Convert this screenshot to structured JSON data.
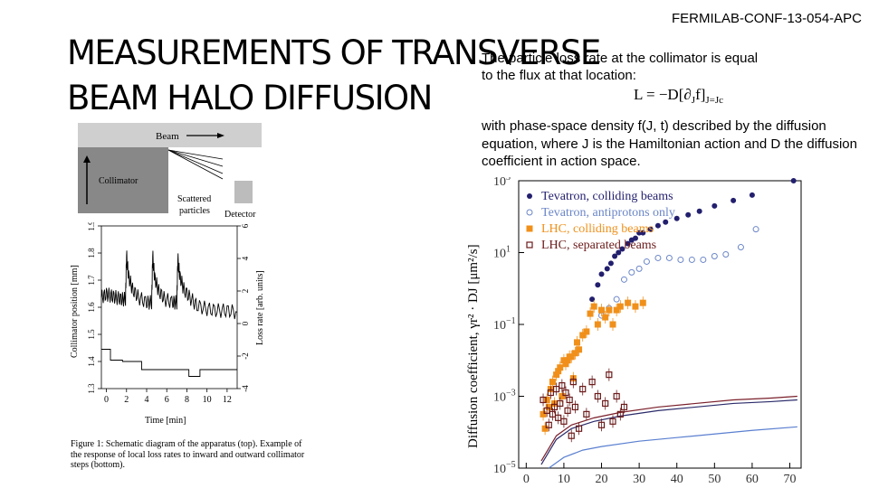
{
  "conference_id": "FERMILAB-CONF-13-054-APC",
  "title": {
    "line1": "MEASUREMENTS OF TRANSVERSE",
    "line2": "BEAM HALO DIFFUSION"
  },
  "text": {
    "para1_line1": "The particle loss rate at the collimator is equal",
    "para1_line2": "to the flux at that location:",
    "equation_main": "L = −D[∂",
    "equation_sub1": "J",
    "equation_mid": "f]",
    "equation_sub2": "J=Jc",
    "para2_line1": "with phase-space density  f(J, t) described by the diffusion",
    "para2_line2": "equation, where J is the Hamiltonian action and D the diffusion",
    "para2_line3": "coefficient in action space."
  },
  "schematic": {
    "beam_label": "Beam",
    "collimator_label": "Collimator",
    "scattered_line1": "Scattered",
    "scattered_line2": "particles",
    "detector_label": "Detector"
  },
  "figure_caption": "Figure 1: Schematic diagram of the apparatus (top). Example of the response of local loss rates to inward and outward collimator steps (bottom).",
  "chart_data": [
    {
      "type": "line",
      "title": "",
      "xlabel": "Time [min]",
      "ylabel_left": "Collimator position [mm]",
      "ylabel_right": "Loss rate [arb. units]",
      "x_ticks": [
        "0",
        "2",
        "4",
        "6",
        "8",
        "10",
        "12"
      ],
      "y_left_ticks": [
        "1.3",
        "1.4",
        "1.5",
        "1.6",
        "1.7",
        "1.8",
        "1.9"
      ],
      "y_right_ticks": [
        "-4",
        "-2",
        "0",
        "2",
        "4",
        "6"
      ],
      "xlim": [
        -0.5,
        13
      ],
      "ylim_left": [
        1.3,
        1.9
      ],
      "ylim_right": [
        -4,
        6
      ],
      "series": [
        {
          "name": "Collimator position",
          "axis": "left",
          "x": [
            -0.5,
            0.4,
            0.4,
            1.6,
            1.6,
            3.5,
            3.5,
            8.2,
            8.2,
            9.3,
            9.3,
            13
          ],
          "y": [
            1.445,
            1.445,
            1.405,
            1.405,
            1.4,
            1.4,
            1.37,
            1.37,
            1.345,
            1.345,
            1.37,
            1.37
          ]
        },
        {
          "name": "Loss rate",
          "axis": "right",
          "x": [
            -0.5,
            0,
            0.5,
            1.0,
            1.5,
            1.9,
            2.0,
            2.2,
            2.6,
            3.2,
            4.0,
            4.5,
            4.6,
            4.8,
            5.2,
            5.8,
            6.6,
            7.0,
            7.1,
            7.3,
            7.7,
            8.3,
            9.0,
            10.0,
            11.0,
            12.0,
            13.0
          ],
          "y": [
            1.6,
            1.8,
            1.7,
            1.6,
            1.5,
            1.5,
            4.2,
            2.9,
            2.1,
            1.6,
            1.3,
            1.3,
            4.2,
            2.8,
            2.0,
            1.5,
            1.3,
            1.3,
            4.0,
            2.9,
            2.1,
            1.6,
            1.1,
            0.9,
            0.8,
            0.8,
            0.7
          ]
        }
      ]
    },
    {
      "type": "scatter",
      "title": "",
      "xlabel": "",
      "ylabel": "Diffusion coefficient, γr² · DJ [μm²/s]",
      "y_scale": "log",
      "xlim": [
        -2,
        73
      ],
      "ylim_exp": [
        -5,
        3
      ],
      "x_ticks": [
        "0",
        "10",
        "20",
        "30",
        "40",
        "50",
        "60",
        "70"
      ],
      "y_ticks": [
        "10^−5",
        "10^−3",
        "10^−1",
        "10^1",
        "10^3"
      ],
      "legend": [
        "Tevatron, colliding beams",
        "Tevatron, antiprotons only",
        "LHC, colliding beams",
        "LHC, separated beams"
      ],
      "legend_position": "top-left",
      "series": [
        {
          "name": "Tevatron, colliding beams",
          "x": [
            17.5,
            19,
            20,
            21.5,
            22.5,
            23.5,
            24.5,
            25.5,
            27,
            28,
            29,
            30,
            31,
            33,
            35,
            37,
            40,
            43,
            46,
            50,
            55,
            60,
            71
          ],
          "y_log10": [
            -0.3,
            0.1,
            0.4,
            0.55,
            0.7,
            0.9,
            1.0,
            1.1,
            1.25,
            1.35,
            1.4,
            1.55,
            1.55,
            1.65,
            1.75,
            1.85,
            1.95,
            2.05,
            2.15,
            2.3,
            2.45,
            2.6,
            3.0
          ]
        },
        {
          "name": "Tevatron, antiprotons only",
          "x": [
            20,
            22,
            24,
            26,
            28,
            30,
            32,
            35,
            38,
            41,
            44,
            47,
            50,
            53,
            57,
            61
          ],
          "y_log10": [
            -0.75,
            -0.55,
            -0.3,
            0.25,
            0.45,
            0.55,
            0.75,
            0.85,
            0.85,
            0.8,
            0.8,
            0.8,
            0.9,
            0.95,
            1.15,
            1.65
          ]
        },
        {
          "name": "LHC, colliding beams",
          "x": [
            4.5,
            5,
            5.5,
            6,
            6.5,
            7,
            7.5,
            8,
            8.5,
            9,
            9.5,
            10,
            10.5,
            11,
            11.5,
            12,
            12.5,
            13,
            13.5,
            14,
            15,
            16,
            17,
            18,
            19,
            20,
            21,
            22,
            23,
            24,
            25,
            27,
            29,
            31
          ],
          "y_log10": [
            -3.5,
            -3.9,
            -3.1,
            -3.3,
            -2.8,
            -2.6,
            -3.2,
            -2.4,
            -2.3,
            -2.2,
            -3.0,
            -2.0,
            -2.1,
            -2.0,
            -1.9,
            -1.9,
            -2.5,
            -1.8,
            -1.5,
            -1.7,
            -1.3,
            -1.2,
            -0.7,
            -0.5,
            -1.0,
            -0.6,
            -0.8,
            -0.6,
            -1.0,
            -0.6,
            -0.5,
            -0.4,
            -0.5,
            -0.4
          ]
        },
        {
          "name": "LHC, separated beams",
          "x": [
            4.5,
            5.5,
            6,
            6.5,
            7,
            7.5,
            8,
            8.5,
            9,
            9.5,
            10,
            10.5,
            11,
            11.5,
            12,
            12.5,
            13,
            14,
            15,
            16,
            17.5,
            19,
            20,
            21,
            22,
            23,
            24,
            25,
            26
          ],
          "y_log10": [
            -3.1,
            -3.4,
            -3.8,
            -2.9,
            -3.5,
            -3.3,
            -2.8,
            -3.6,
            -3.2,
            -2.7,
            -3.7,
            -2.9,
            -3.4,
            -3.1,
            -4.1,
            -2.6,
            -3.3,
            -3.9,
            -2.8,
            -3.5,
            -2.6,
            -3.0,
            -3.8,
            -3.2,
            -2.4,
            -3.7,
            -3.0,
            -3.5,
            -3.3
          ]
        }
      ],
      "model_curves": [
        {
          "name": "curve-dark-red",
          "x": [
            4,
            8,
            12,
            18,
            25,
            35,
            45,
            55,
            65,
            72
          ],
          "y_log10": [
            -4.8,
            -4.1,
            -3.8,
            -3.6,
            -3.45,
            -3.3,
            -3.2,
            -3.1,
            -3.05,
            -3.0
          ]
        },
        {
          "name": "curve-dark-blue",
          "x": [
            4,
            8,
            12,
            18,
            25,
            35,
            45,
            55,
            65,
            72
          ],
          "y_log10": [
            -4.9,
            -4.2,
            -3.9,
            -3.7,
            -3.55,
            -3.4,
            -3.3,
            -3.2,
            -3.15,
            -3.1
          ]
        },
        {
          "name": "curve-light-blue",
          "x": [
            6,
            10,
            15,
            20,
            30,
            40,
            50,
            60,
            72
          ],
          "y_log10": [
            -5.0,
            -4.7,
            -4.5,
            -4.4,
            -4.25,
            -4.15,
            -4.05,
            -3.95,
            -3.85
          ]
        }
      ]
    }
  ],
  "colors": {
    "tevatron_colliding": "#221f6e",
    "tevatron_antiprotons": "#6b86c8",
    "lhc_colliding": "#f0901a",
    "lhc_separated": "#6b1a1a",
    "curve_light_blue": "#5a7fd0"
  }
}
